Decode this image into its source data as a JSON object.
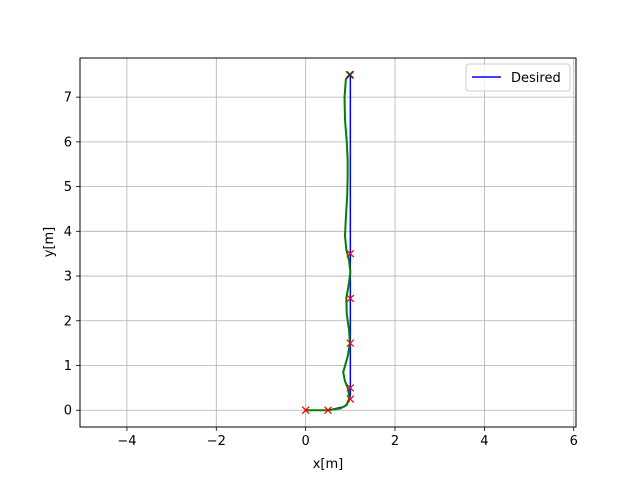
{
  "chart_data": {
    "type": "line",
    "title": "",
    "xlabel": "x[m]",
    "ylabel": "y[m]",
    "xlim": [
      -5.05,
      6.05
    ],
    "ylim": [
      -0.375,
      7.875
    ],
    "xticks": [
      -4,
      -2,
      0,
      2,
      4,
      6
    ],
    "yticks": [
      0,
      1,
      2,
      3,
      4,
      5,
      6,
      7
    ],
    "xtick_labels": [
      "−4",
      "−2",
      "0",
      "2",
      "4",
      "6"
    ],
    "ytick_labels": [
      "0",
      "1",
      "2",
      "3",
      "4",
      "5",
      "6",
      "7"
    ],
    "grid": true,
    "legend_position": "top-right",
    "series": [
      {
        "name": "Desired",
        "color": "#0000ff",
        "style": "line",
        "x": [
          0,
          0.5,
          0.87,
          0.97,
          1.0,
          1.0,
          1.0,
          1.0,
          1.0,
          1.0,
          1.0
        ],
        "y": [
          0,
          0.0,
          0.08,
          0.2,
          0.35,
          0.5,
          1.5,
          2.5,
          3.5,
          5.5,
          7.5
        ]
      },
      {
        "name": "",
        "color": "#008000",
        "style": "line",
        "x": [
          0,
          0.5,
          0.78,
          0.92,
          0.97,
          0.96,
          0.88,
          0.84,
          0.94,
          0.99,
          0.97,
          0.92,
          0.91,
          0.97,
          1.0,
          0.97,
          0.91,
          0.88,
          0.9,
          0.93,
          0.94,
          0.94,
          0.92,
          0.88,
          0.87,
          0.9,
          0.98
        ],
        "y": [
          0,
          0.0,
          0.04,
          0.12,
          0.25,
          0.45,
          0.65,
          0.85,
          1.2,
          1.5,
          1.8,
          2.15,
          2.5,
          2.85,
          3.1,
          3.35,
          3.6,
          3.9,
          4.3,
          4.8,
          5.2,
          5.6,
          6.0,
          6.5,
          7.0,
          7.4,
          7.5
        ]
      },
      {
        "name": "",
        "color": "#ff0000",
        "style": "x-marker",
        "x": [
          0,
          0.5,
          1.0,
          1.0,
          1.0,
          1.0,
          1.0,
          1.0
        ],
        "y": [
          0,
          0,
          0.25,
          0.5,
          1.5,
          2.5,
          3.5,
          7.5
        ]
      },
      {
        "name": "",
        "color": "#1a3d1a",
        "style": "x-marker",
        "x": [
          0.98
        ],
        "y": [
          7.5
        ]
      }
    ],
    "colors": {
      "grid": "#b0b0b0",
      "axes": "#000000",
      "background": "#ffffff",
      "legend_border": "#cccccc"
    }
  }
}
